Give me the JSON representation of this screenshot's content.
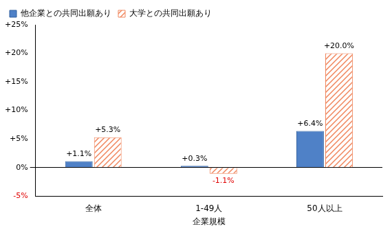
{
  "chart_data": {
    "type": "bar",
    "categories": [
      "全体",
      "1-49人",
      "50人以上"
    ],
    "x_label": "企業規模",
    "series": [
      {
        "name": "他企業との共同出願あり",
        "color": "#4f81c7",
        "values": [
          1.1,
          0.3,
          6.4
        ],
        "value_labels": [
          "+1.1%",
          "+0.3%",
          "+6.4%"
        ]
      },
      {
        "name": "大学との共同出願あり",
        "color": "#f0855c",
        "values": [
          5.3,
          -1.1,
          20.0
        ],
        "value_labels": [
          "+5.3%",
          "-1.1%",
          "+20.0%"
        ]
      }
    ],
    "ylim": [
      -5,
      25
    ],
    "yticks": [
      {
        "value": -5,
        "label": "-5%"
      },
      {
        "value": 0,
        "label": "0%"
      },
      {
        "value": 5,
        "label": "+5%"
      },
      {
        "value": 10,
        "label": "+10%"
      },
      {
        "value": 15,
        "label": "+15%"
      },
      {
        "value": 20,
        "label": "+20%"
      },
      {
        "value": 25,
        "label": "+25%"
      }
    ],
    "grid": false,
    "legend": "upper left",
    "data_labels": true
  }
}
